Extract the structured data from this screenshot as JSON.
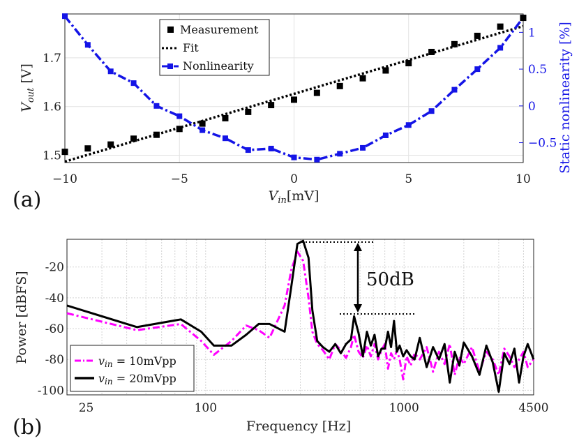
{
  "chart_data": [
    {
      "panel_label": "(a)",
      "type": "line",
      "xlabel": "V_in[mV]",
      "ylabel": "V_out [V]",
      "y2label": "Static nonlinearity [%]",
      "xlim": [
        -10,
        10
      ],
      "ylim": [
        1.485,
        1.79
      ],
      "y2lim": [
        -0.77,
        1.25
      ],
      "x_ticks": [
        -10,
        -5,
        0,
        5,
        10
      ],
      "y_ticks": [
        1.5,
        1.6,
        1.7
      ],
      "y2_ticks": [
        -0.5,
        0,
        0.5,
        1
      ],
      "grid": true,
      "legend": "top-center",
      "colors": {
        "measurement": "#000000",
        "fit": "#000000",
        "nonlinearity": "#1414e6"
      },
      "series": [
        {
          "name": "Measurement",
          "axis": "left",
          "style": "square-markers",
          "x": [
            -10,
            -9,
            -8,
            -7,
            -6,
            -5,
            -4,
            -3,
            -2,
            -1,
            0,
            1,
            2,
            3,
            4,
            5,
            6,
            7,
            8,
            9,
            10
          ],
          "values": [
            1.507,
            1.514,
            1.522,
            1.534,
            1.542,
            1.554,
            1.565,
            1.576,
            1.589,
            1.603,
            1.614,
            1.628,
            1.642,
            1.658,
            1.674,
            1.689,
            1.712,
            1.728,
            1.745,
            1.764,
            1.782
          ]
        },
        {
          "name": "Fit",
          "axis": "left",
          "style": "dotted",
          "x": [
            -10,
            10
          ],
          "values": [
            1.487,
            1.765
          ]
        },
        {
          "name": "Nonlinearity",
          "axis": "right",
          "style": "dash-dot-markers",
          "x": [
            -10,
            -9,
            -8,
            -7,
            -6,
            -5,
            -4,
            -3,
            -2,
            -1,
            0,
            1,
            2,
            3,
            4,
            5,
            6,
            7,
            8,
            9,
            10
          ],
          "values": [
            1.22,
            0.83,
            0.47,
            0.31,
            0.0,
            -0.14,
            -0.33,
            -0.44,
            -0.6,
            -0.58,
            -0.7,
            -0.73,
            -0.65,
            -0.57,
            -0.4,
            -0.26,
            -0.07,
            0.22,
            0.5,
            0.79,
            1.2
          ]
        }
      ]
    },
    {
      "panel_label": "(b)",
      "type": "line",
      "xlabel": "Frequency [Hz]",
      "ylabel": "Power [dBFS]",
      "x_scale": "log",
      "xlim": [
        20,
        4500
      ],
      "ylim": [
        -103,
        -2
      ],
      "x_ticks": [
        25,
        100,
        1000,
        4500
      ],
      "y_ticks": [
        -20,
        -40,
        -60,
        -80,
        -100
      ],
      "grid": true,
      "legend": "bottom-left",
      "colors": {
        "vin10": "#ff00ff",
        "vin20": "#000000"
      },
      "annotation": "50dB",
      "series": [
        {
          "name": "v_in = 10mVpp",
          "style": "dash-dot",
          "x": [
            20,
            45,
            75,
            95,
            110,
            135,
            160,
            185,
            210,
            250,
            270,
            290,
            310,
            330,
            345,
            365,
            390,
            420,
            450,
            480,
            510,
            540,
            560,
            590,
            620,
            650,
            680,
            710,
            740,
            770,
            800,
            830,
            860,
            890,
            920,
            950,
            990,
            1030,
            1080,
            1130,
            1200,
            1300,
            1400,
            1500,
            1600,
            1700,
            1800,
            1900,
            2000,
            2200,
            2400,
            2600,
            2800,
            3000,
            3200,
            3400,
            3600,
            3800,
            4000,
            4200,
            4500
          ],
          "values": [
            -50,
            -61,
            -57,
            -68,
            -77,
            -68,
            -58,
            -61,
            -66,
            -45,
            -22,
            -10,
            -16,
            -40,
            -62,
            -70,
            -74,
            -80,
            -70,
            -74,
            -79,
            -72,
            -64,
            -75,
            -79,
            -71,
            -78,
            -70,
            -80,
            -74,
            -70,
            -86,
            -76,
            -80,
            -74,
            -80,
            -93,
            -78,
            -84,
            -76,
            -80,
            -72,
            -88,
            -75,
            -83,
            -70,
            -90,
            -78,
            -83,
            -72,
            -88,
            -75,
            -80,
            -90,
            -73,
            -78,
            -85,
            -80,
            -75,
            -85,
            -80
          ]
        },
        {
          "name": "v_in = 20mVpp",
          "style": "solid",
          "x": [
            20,
            45,
            75,
            95,
            110,
            135,
            160,
            185,
            210,
            250,
            270,
            290,
            310,
            330,
            345,
            365,
            390,
            420,
            450,
            480,
            510,
            540,
            560,
            590,
            620,
            650,
            680,
            710,
            740,
            770,
            800,
            830,
            860,
            890,
            920,
            950,
            990,
            1030,
            1080,
            1130,
            1200,
            1300,
            1400,
            1500,
            1600,
            1700,
            1800,
            1900,
            2000,
            2200,
            2400,
            2600,
            2800,
            3000,
            3200,
            3400,
            3600,
            3800,
            4000,
            4200,
            4500
          ],
          "values": [
            -45,
            -59,
            -54,
            -62,
            -71,
            -71,
            -64,
            -57,
            -57,
            -62,
            -33,
            -5,
            -3,
            -14,
            -48,
            -68,
            -72,
            -75,
            -70,
            -76,
            -70,
            -67,
            -52,
            -63,
            -78,
            -62,
            -71,
            -64,
            -78,
            -73,
            -73,
            -62,
            -72,
            -55,
            -75,
            -71,
            -78,
            -74,
            -78,
            -80,
            -66,
            -85,
            -72,
            -80,
            -70,
            -95,
            -75,
            -84,
            -69,
            -78,
            -90,
            -71,
            -82,
            -101,
            -76,
            -83,
            -73,
            -95,
            -78,
            -70,
            -80
          ]
        }
      ]
    }
  ]
}
